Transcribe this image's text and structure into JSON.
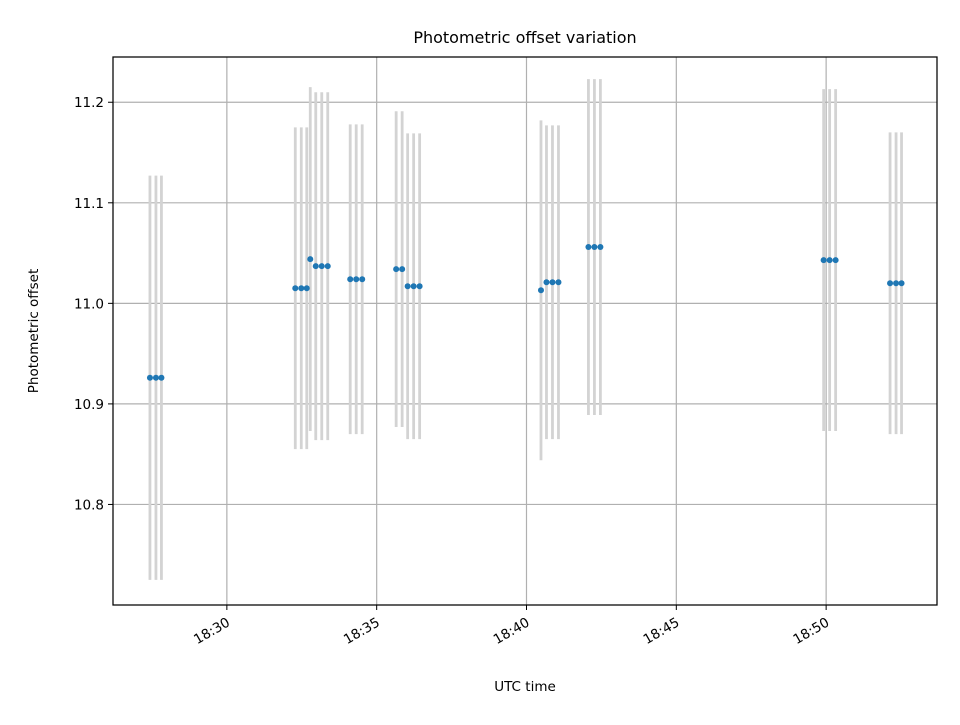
{
  "chart_data": {
    "type": "scatter",
    "title": "Photometric offset variation",
    "xlabel": "UTC time",
    "ylabel": "Photometric offset",
    "x_unit": "UTC time (HH:MM:SS)",
    "xlim": [
      "18:26:12",
      "18:53:42"
    ],
    "ylim": [
      10.7,
      11.245
    ],
    "x_ticks": [
      "18:30",
      "18:35",
      "18:40",
      "18:45",
      "18:50"
    ],
    "y_ticks": [
      10.8,
      10.9,
      11.0,
      11.1,
      11.2
    ],
    "grid": true,
    "legend": "none",
    "colors": {
      "point": "#1f77b4",
      "errorbar": "#d3d3d3",
      "grid": "#b0b0b0",
      "axes": "#000000"
    },
    "series": [
      {
        "points": [
          {
            "x": "18:27:26",
            "y": 10.926,
            "err": 0.201
          },
          {
            "x": "18:27:38",
            "y": 10.926,
            "err": 0.201
          },
          {
            "x": "18:27:49",
            "y": 10.926,
            "err": 0.201
          },
          {
            "x": "18:32:17",
            "y": 11.015,
            "err": 0.16
          },
          {
            "x": "18:32:29",
            "y": 11.015,
            "err": 0.16
          },
          {
            "x": "18:32:40",
            "y": 11.015,
            "err": 0.16
          },
          {
            "x": "18:32:47",
            "y": 11.044,
            "err": 0.171
          },
          {
            "x": "18:32:58",
            "y": 11.037,
            "err": 0.173
          },
          {
            "x": "18:33:10",
            "y": 11.037,
            "err": 0.173
          },
          {
            "x": "18:33:22",
            "y": 11.037,
            "err": 0.173
          },
          {
            "x": "18:34:07",
            "y": 11.024,
            "err": 0.154
          },
          {
            "x": "18:34:19",
            "y": 11.024,
            "err": 0.154
          },
          {
            "x": "18:34:31",
            "y": 11.024,
            "err": 0.154
          },
          {
            "x": "18:35:39",
            "y": 11.034,
            "err": 0.157
          },
          {
            "x": "18:35:51",
            "y": 11.034,
            "err": 0.157
          },
          {
            "x": "18:36:02",
            "y": 11.017,
            "err": 0.152
          },
          {
            "x": "18:36:14",
            "y": 11.017,
            "err": 0.152
          },
          {
            "x": "18:36:26",
            "y": 11.017,
            "err": 0.152
          },
          {
            "x": "18:40:29",
            "y": 11.013,
            "err": 0.169
          },
          {
            "x": "18:40:40",
            "y": 11.021,
            "err": 0.156
          },
          {
            "x": "18:40:52",
            "y": 11.021,
            "err": 0.156
          },
          {
            "x": "18:41:04",
            "y": 11.021,
            "err": 0.156
          },
          {
            "x": "18:42:04",
            "y": 11.056,
            "err": 0.167
          },
          {
            "x": "18:42:16",
            "y": 11.056,
            "err": 0.167
          },
          {
            "x": "18:42:28",
            "y": 11.056,
            "err": 0.167
          },
          {
            "x": "18:49:55",
            "y": 11.043,
            "err": 0.17
          },
          {
            "x": "18:50:07",
            "y": 11.043,
            "err": 0.17
          },
          {
            "x": "18:50:19",
            "y": 11.043,
            "err": 0.17
          },
          {
            "x": "18:52:08",
            "y": 11.02,
            "err": 0.15
          },
          {
            "x": "18:52:20",
            "y": 11.02,
            "err": 0.15
          },
          {
            "x": "18:52:31",
            "y": 11.02,
            "err": 0.15
          }
        ]
      }
    ]
  }
}
